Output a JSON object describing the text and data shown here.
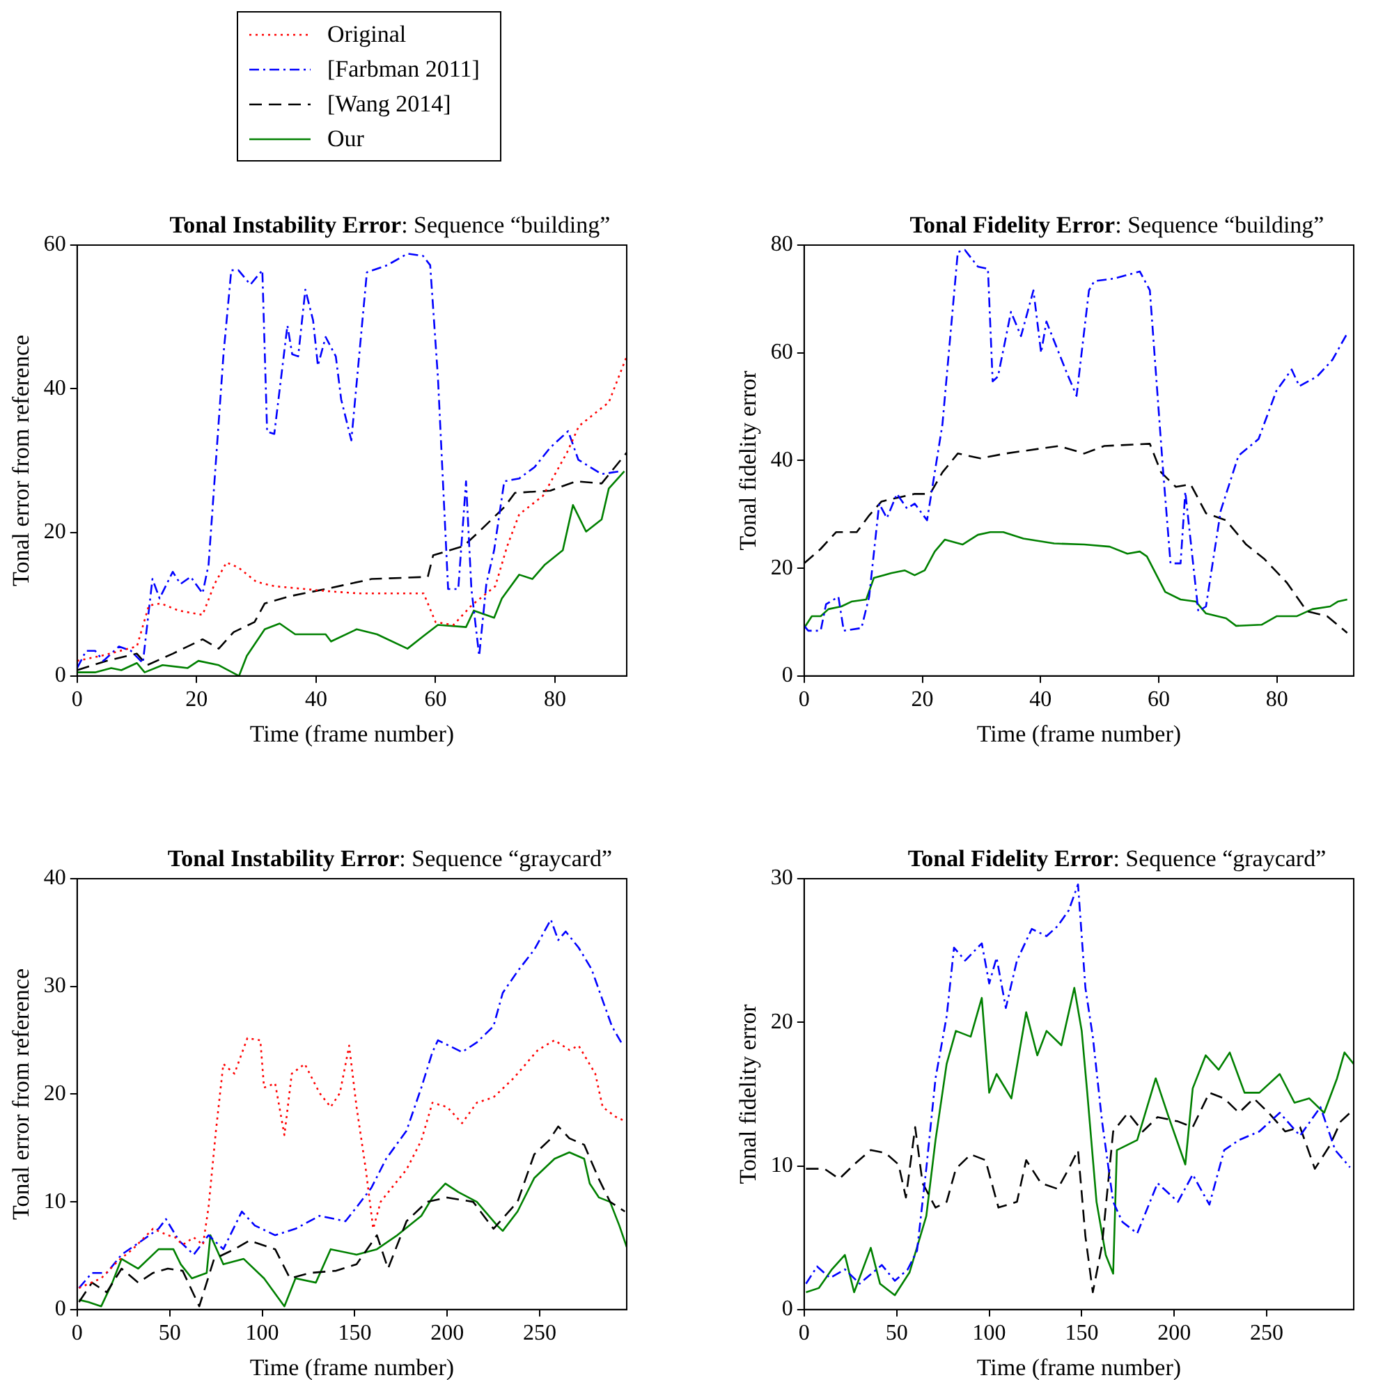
{
  "chart_data": [
    {
      "type": "line",
      "title": "Tonal Instability Error: Sequence “building”",
      "xlabel": "Time (frame number)",
      "ylabel": "Tonal error from reference",
      "xlim": [
        0,
        92
      ],
      "xticks": [
        0,
        20,
        40,
        60,
        80
      ],
      "ylim": [
        0,
        60
      ],
      "yticks": [
        0,
        20,
        40,
        60
      ],
      "legend": "top left",
      "series": [
        {
          "name": "Original",
          "color": "#ff0000",
          "line_style": "dotted",
          "x": [
            0,
            4,
            10,
            12,
            14,
            17,
            21,
            23,
            25,
            27,
            30,
            33,
            42,
            47,
            58,
            60,
            63,
            66,
            70,
            72,
            74,
            78,
            82,
            84,
            89,
            92
          ],
          "values": [
            2.1,
            2.8,
            4.1,
            9.8,
            10.1,
            9.1,
            8.5,
            12.8,
            15.8,
            15.1,
            13.1,
            12.5,
            11.8,
            11.5,
            11.5,
            7.5,
            7.1,
            9.8,
            12.5,
            18.1,
            22.5,
            25.1,
            31.1,
            34.8,
            38.1,
            44.5
          ]
        },
        {
          "name": "[Farbman 2011]",
          "color": "#0000ff",
          "line_style": "dashdot",
          "x": [
            0,
            1.5,
            3,
            4.4,
            7,
            9,
            11,
            12.6,
            13.8,
            16,
            17.3,
            19,
            21,
            22,
            24.5,
            25.8,
            27,
            29,
            31,
            31.8,
            33,
            35.2,
            36,
            37,
            38.2,
            39.5,
            40.3,
            41.6,
            43.3,
            44.2,
            45.9,
            48.5,
            51.9,
            55.3,
            57.9,
            59.1,
            60.4,
            62.1,
            63.8,
            65.1,
            66,
            67.3,
            68.5,
            69.8,
            71.5,
            74,
            76.6,
            79.2,
            82.2,
            83.9,
            87.8,
            90.8
          ],
          "values": [
            1.1,
            3.5,
            3.5,
            2.1,
            4.1,
            3.5,
            1.8,
            13.5,
            10.8,
            14.5,
            12.8,
            13.8,
            11.5,
            15.5,
            44.8,
            56.5,
            56.5,
            54.5,
            56.5,
            34,
            33.7,
            48.8,
            44.8,
            44.5,
            53.8,
            49.5,
            43.2,
            47.2,
            44.5,
            38.5,
            32.8,
            56.2,
            57.2,
            58.8,
            58.5,
            57.2,
            41.5,
            12.1,
            12.1,
            27.1,
            12.1,
            2.8,
            12.8,
            17.5,
            27.1,
            27.5,
            29.1,
            31.8,
            34.1,
            30.1,
            28.1,
            28.5
          ]
        },
        {
          "name": "[Wang 2014]",
          "color": "#000000",
          "line_style": "dashed",
          "x": [
            0,
            4.9,
            10,
            11.7,
            16,
            21,
            23.7,
            26.2,
            29.7,
            31.4,
            35.6,
            41.6,
            49.3,
            58.7,
            59.6,
            64.7,
            67.3,
            71.5,
            73.3,
            79.2,
            83.5,
            87.8,
            92
          ],
          "values": [
            0.8,
            2.1,
            3.1,
            1.5,
            3.1,
            5.1,
            3.8,
            6.1,
            7.5,
            10.1,
            11.1,
            12.1,
            13.5,
            13.8,
            16.8,
            18.1,
            20.1,
            23.5,
            25.5,
            25.8,
            27.1,
            26.8,
            31.1
          ]
        },
        {
          "name": "Our",
          "color": "#008000",
          "line_style": "solid",
          "x": [
            0,
            3,
            5.7,
            7.4,
            10,
            11.3,
            14.3,
            18.5,
            20.3,
            23.7,
            27.1,
            28.4,
            31.4,
            33.9,
            36.5,
            41.6,
            42.5,
            46.8,
            50.2,
            55.3,
            57.9,
            60.4,
            65.1,
            66.4,
            69.8,
            71.1,
            74,
            76.2,
            78.3,
            81.3,
            83,
            85.2,
            87.8,
            89,
            91.6
          ],
          "values": [
            0.5,
            0.5,
            1.1,
            0.8,
            1.8,
            0.5,
            1.5,
            1.1,
            2.1,
            1.5,
            0,
            2.8,
            6.5,
            7.3,
            5.8,
            5.8,
            4.8,
            6.5,
            5.8,
            3.8,
            5.5,
            7.1,
            6.8,
            9.1,
            8.1,
            10.8,
            14.1,
            13.5,
            15.5,
            17.5,
            23.8,
            20.1,
            21.8,
            26.1,
            28.5
          ]
        }
      ]
    },
    {
      "type": "line",
      "title": "Tonal Fidelity Error: Sequence “building”",
      "xlabel": "Time (frame number)",
      "ylabel": "Tonal fidelity error",
      "xlim": [
        0,
        93
      ],
      "xticks": [
        0,
        20,
        40,
        60,
        80
      ],
      "ylim": [
        0,
        80
      ],
      "yticks": [
        0,
        20,
        40,
        60,
        80
      ],
      "series": [
        {
          "color": "#0000ff",
          "line_style": "dashdot",
          "x": [
            0,
            0.7,
            2.8,
            3.7,
            5.8,
            6.7,
            9.7,
            11,
            12.7,
            14,
            15.7,
            17.4,
            18.7,
            20.8,
            23.4,
            26,
            27.2,
            29.4,
            31.1,
            31.9,
            32.8,
            35,
            36.7,
            38.8,
            40.1,
            41,
            42.3,
            44.4,
            46.1,
            48.2,
            49.1,
            52.5,
            56.8,
            58.5,
            60.7,
            62,
            63.7,
            64.5,
            66.7,
            68,
            70.5,
            73.5,
            76.9,
            79.9,
            82.5,
            83.8,
            86.8,
            89.4,
            91.9
          ],
          "values": [
            9.3,
            8.4,
            8.4,
            13.3,
            14.7,
            8.4,
            8.9,
            14.7,
            32,
            29.3,
            33.8,
            31.1,
            32,
            28.9,
            46.7,
            78.7,
            79.1,
            76,
            75.6,
            54.7,
            55.6,
            67.6,
            63.1,
            71.6,
            60,
            65.8,
            62.2,
            56.4,
            52,
            71.6,
            73.3,
            73.8,
            75.1,
            71.6,
            38.7,
            20.9,
            20.9,
            34.2,
            12,
            12.9,
            30.7,
            40.9,
            44,
            52.9,
            56.9,
            53.8,
            55.6,
            58.7,
            63.6
          ]
        },
        {
          "color": "#000000",
          "line_style": "dashed",
          "x": [
            0,
            2.8,
            5.4,
            8.9,
            11,
            13.1,
            18.7,
            21.3,
            23.4,
            26,
            29.8,
            34.1,
            43.1,
            47.4,
            50.8,
            58.5,
            60.4,
            62.9,
            65.4,
            68,
            71.4,
            74.8,
            77.8,
            81.7,
            85.1,
            88.5,
            91.9
          ],
          "values": [
            20.9,
            23.6,
            26.7,
            26.7,
            29.8,
            32.4,
            33.8,
            33.8,
            37.8,
            41.3,
            40.4,
            41.3,
            42.7,
            41.3,
            42.7,
            43.1,
            37.8,
            35.1,
            35.6,
            30.2,
            28.9,
            24.4,
            21.8,
            17.3,
            12,
            11.1,
            8
          ]
        },
        {
          "color": "#008000",
          "line_style": "solid",
          "x": [
            0,
            1.3,
            2.8,
            4.1,
            6.3,
            8,
            10.5,
            11.8,
            14.8,
            17,
            18.7,
            20.4,
            22.1,
            23.8,
            26.8,
            29.4,
            31.5,
            33.7,
            37.1,
            42.3,
            47.4,
            51.7,
            54.7,
            56.8,
            58,
            61.1,
            63.7,
            66.3,
            68,
            71.4,
            73.1,
            77.4,
            80,
            83.4,
            86,
            89,
            90.3,
            91.9
          ],
          "values": [
            8.9,
            11.1,
            11.1,
            12.4,
            12.9,
            13.8,
            14.2,
            18.2,
            19.1,
            19.6,
            18.7,
            19.6,
            23.1,
            25.3,
            24.4,
            26.2,
            26.7,
            26.7,
            25.5,
            24.6,
            24.4,
            24,
            22.7,
            23.1,
            22.2,
            15.6,
            14.2,
            13.8,
            11.6,
            10.7,
            9.3,
            9.5,
            11.1,
            11.1,
            12.4,
            12.9,
            13.8,
            14.2
          ]
        }
      ]
    },
    {
      "type": "line",
      "title": "Tonal Instability Error: Sequence “graycard”",
      "xlabel": "Time (frame number)",
      "ylabel": "Tonal error from reference",
      "xlim": [
        0,
        297
      ],
      "xticks": [
        0,
        50,
        100,
        150,
        200,
        250
      ],
      "ylim": [
        0,
        40
      ],
      "yticks": [
        0,
        10,
        20,
        30,
        40
      ],
      "series": [
        {
          "color": "#ff0000",
          "line_style": "dotted",
          "x": [
            1,
            13,
            22,
            30,
            41,
            49,
            53,
            57,
            63,
            68,
            71,
            75,
            79,
            85,
            92,
            99,
            101,
            107,
            112,
            116,
            123,
            131,
            137,
            142,
            147,
            151,
            156,
            160,
            164,
            170,
            178,
            186,
            192,
            200,
            208,
            216,
            225,
            236,
            249,
            258,
            266,
            271,
            280,
            284,
            291,
            296
          ],
          "values": [
            2,
            2.9,
            4.5,
            5.6,
            7.5,
            6.9,
            6.7,
            6,
            6.7,
            6,
            9.5,
            16.6,
            22.8,
            21.9,
            25.2,
            25,
            20.6,
            21,
            16.2,
            21.9,
            22.8,
            20.1,
            18.8,
            20.1,
            24.5,
            18.8,
            13,
            7.5,
            10,
            11.3,
            13,
            15.7,
            19.2,
            18.8,
            17.3,
            19.2,
            19.7,
            21.5,
            24.1,
            25,
            24.1,
            24.5,
            21.9,
            18.8,
            17.9,
            17.5
          ]
        },
        {
          "color": "#0000ff",
          "line_style": "dashdot",
          "x": [
            1,
            8,
            16,
            24,
            35,
            44,
            48,
            55,
            63,
            71,
            79,
            89,
            96,
            107,
            118,
            131,
            145,
            151,
            159,
            167,
            178,
            186,
            192,
            195,
            208,
            216,
            225,
            230,
            238,
            247,
            256,
            260,
            264,
            271,
            278,
            284,
            289,
            295
          ],
          "values": [
            2,
            3.4,
            3.4,
            5.1,
            6.4,
            7.5,
            8.4,
            6.4,
            5.1,
            6.9,
            5.6,
            9.1,
            7.8,
            6.9,
            7.5,
            8.7,
            8.2,
            9.5,
            11.3,
            14,
            16.6,
            20.6,
            23.9,
            25,
            23.9,
            24.8,
            26.3,
            29.4,
            31.4,
            33.4,
            36.2,
            34.3,
            35.1,
            33.6,
            31.6,
            28.7,
            26.3,
            24.5
          ]
        },
        {
          "color": "#000000",
          "line_style": "dashed",
          "x": [
            1,
            8,
            16,
            24,
            33,
            41,
            49,
            57,
            66,
            74,
            85,
            93,
            107,
            115,
            126,
            140,
            151,
            162,
            168,
            178,
            189,
            200,
            214,
            225,
            238,
            247,
            255,
            260,
            266,
            274,
            282,
            288,
            296
          ],
          "values": [
            0.7,
            2.5,
            1.6,
            3.8,
            2.5,
            3.4,
            3.8,
            3.6,
            0.3,
            4.7,
            5.6,
            6.4,
            5.6,
            2.9,
            3.4,
            3.6,
            4.2,
            6.9,
            3.8,
            8.2,
            10,
            10.4,
            10,
            7.5,
            10,
            14.4,
            15.7,
            17,
            15.9,
            15.3,
            12.1,
            10,
            9.1
          ]
        },
        {
          "color": "#008000",
          "line_style": "solid",
          "x": [
            1,
            6,
            13,
            19,
            24,
            33,
            44,
            52,
            56,
            62,
            70,
            72,
            79,
            90,
            101,
            112,
            118,
            129,
            137,
            151,
            162,
            173,
            186,
            192,
            199,
            206,
            216,
            227,
            230,
            238,
            247,
            258,
            266,
            274,
            277,
            282,
            288,
            293,
            297
          ],
          "values": [
            0.9,
            0.7,
            0.3,
            2.5,
            4.7,
            3.8,
            5.6,
            5.6,
            4.2,
            2.9,
            3.4,
            6.9,
            4.2,
            4.7,
            2.9,
            0.3,
            2.9,
            2.5,
            5.6,
            5.1,
            5.6,
            6.9,
            8.7,
            10.4,
            11.7,
            10.9,
            10,
            7.8,
            7.3,
            9.1,
            12.2,
            14,
            14.6,
            14,
            11.7,
            10.4,
            10,
            7.8,
            5.8
          ]
        }
      ]
    },
    {
      "type": "line",
      "title": "Tonal Fidelity Error: Sequence “graycard”",
      "xlabel": "Time (frame number)",
      "ylabel": "Tonal fidelity error",
      "xlim": [
        0,
        297
      ],
      "xticks": [
        0,
        50,
        100,
        150,
        200,
        250
      ],
      "ylim": [
        0,
        30
      ],
      "yticks": [
        0,
        10,
        20,
        30
      ],
      "series": [
        {
          "color": "#0000ff",
          "line_style": "dashdot",
          "x": [
            1,
            7,
            14,
            22,
            30,
            42,
            49,
            56,
            61,
            66,
            71,
            77,
            81,
            87,
            96,
            100,
            104,
            109,
            115,
            123,
            131,
            137,
            143,
            148,
            152,
            156,
            161,
            167,
            172,
            180,
            191,
            202,
            210,
            219,
            227,
            235,
            246,
            257,
            268,
            279,
            287,
            295
          ],
          "values": [
            1.8,
            3,
            2.2,
            2.8,
            1.8,
            3.1,
            2,
            2.8,
            4.1,
            9.8,
            16.1,
            20.4,
            25.2,
            24.3,
            25.5,
            22.7,
            24.5,
            21,
            24.3,
            26.5,
            26,
            26.7,
            27.8,
            29.6,
            22.4,
            19,
            13.1,
            7.5,
            6.1,
            5.3,
            8.8,
            7.5,
            9.4,
            7.3,
            11.1,
            11.8,
            12.4,
            13.7,
            12.1,
            14.1,
            11.1,
            9.9
          ]
        },
        {
          "color": "#000000",
          "line_style": "dashed",
          "x": [
            1,
            11,
            19,
            27,
            36,
            44,
            51,
            55,
            60,
            64,
            71,
            77,
            82,
            90,
            98,
            105,
            115,
            120,
            128,
            137,
            143,
            148,
            152,
            156,
            161,
            167,
            175,
            183,
            191,
            202,
            210,
            219,
            227,
            235,
            243,
            251,
            260,
            268,
            276,
            284,
            290,
            295
          ],
          "values": [
            9.8,
            9.8,
            9.1,
            10.1,
            11.1,
            10.9,
            10.1,
            7.8,
            12.7,
            8.8,
            7.1,
            7.5,
            9.8,
            10.8,
            10.4,
            7.1,
            7.5,
            10.4,
            8.8,
            8.4,
            9.8,
            11.1,
            5.1,
            1.2,
            4.5,
            12.4,
            13.7,
            12.4,
            13.4,
            13.1,
            12.7,
            15.1,
            14.7,
            13.7,
            14.7,
            13.7,
            12.4,
            12.7,
            9.8,
            11.4,
            13.1,
            13.7
          ]
        },
        {
          "color": "#008000",
          "line_style": "solid",
          "x": [
            1,
            8,
            15,
            22,
            27,
            36,
            41,
            49,
            57,
            66,
            71,
            77,
            82,
            90,
            96,
            100,
            104,
            112,
            120,
            126,
            131,
            139,
            146,
            150,
            153,
            158,
            163,
            167,
            169,
            180,
            190,
            197,
            206,
            210,
            217,
            224,
            230,
            238,
            246,
            257,
            265,
            273,
            281,
            288,
            292,
            297
          ],
          "values": [
            1.2,
            1.5,
            2.8,
            3.8,
            1.2,
            4.3,
            1.8,
            1,
            2.6,
            6.5,
            11.8,
            17.1,
            19.4,
            19,
            21.7,
            15.1,
            16.4,
            14.7,
            20.7,
            17.7,
            19.4,
            18.4,
            22.4,
            19.4,
            15.1,
            7.5,
            3.8,
            2.5,
            11.1,
            11.8,
            16.1,
            13.4,
            10.1,
            15.4,
            17.7,
            16.7,
            17.9,
            15.1,
            15.1,
            16.4,
            14.4,
            14.7,
            13.7,
            16.1,
            17.9,
            17.1
          ]
        }
      ]
    }
  ]
}
